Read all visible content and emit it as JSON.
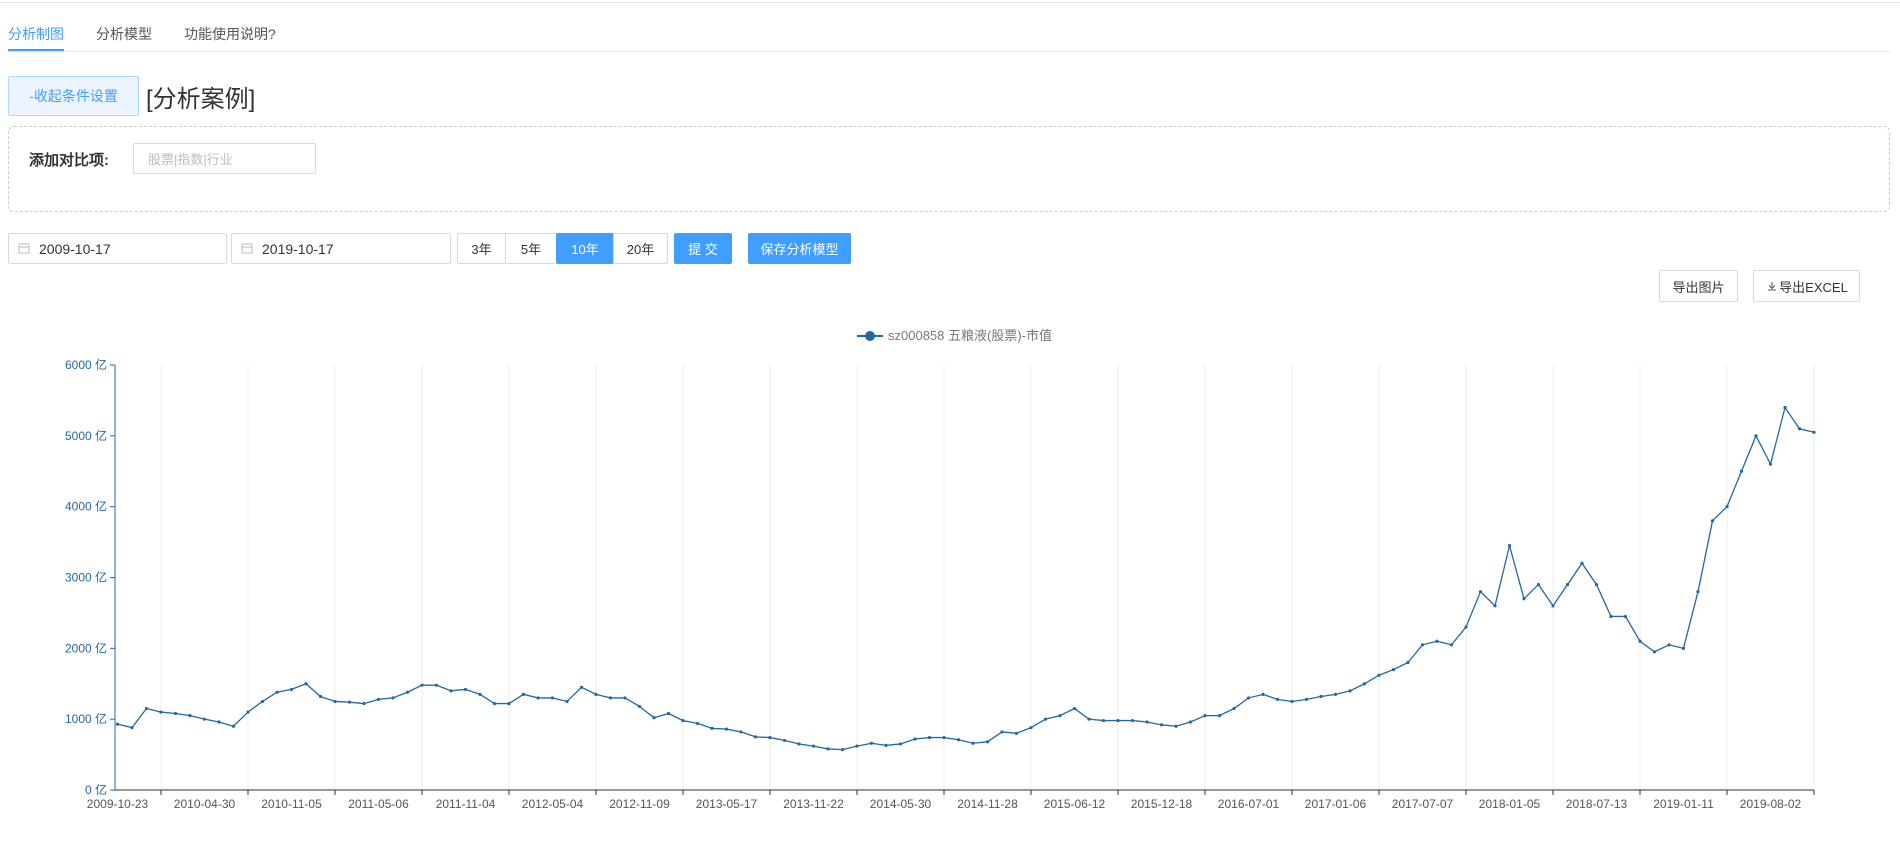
{
  "tabs": [
    "分析制图",
    "分析模型",
    "功能使用说明?"
  ],
  "toggle_button": "-收起条件设置",
  "case_title": "[分析案例]",
  "compare": {
    "label": "添加对比项:",
    "placeholder": "股票|指数|行业"
  },
  "date_range": {
    "start": "2009-10-17",
    "end": "2019-10-17"
  },
  "period_buttons": [
    "3年",
    "5年",
    "10年",
    "20年"
  ],
  "submit_button": "提 交",
  "save_button": "保存分析模型",
  "export_buttons": [
    "导出图片",
    "导出EXCEL"
  ],
  "chart_data": {
    "type": "line",
    "categories": [
      "2009-10-23",
      null,
      null,
      null,
      null,
      null,
      "2010-04-30",
      null,
      null,
      null,
      null,
      null,
      "2010-11-05",
      null,
      null,
      null,
      null,
      null,
      "2011-05-06",
      null,
      null,
      null,
      null,
      null,
      "2011-11-04",
      null,
      null,
      null,
      null,
      null,
      "2012-05-04",
      null,
      null,
      null,
      null,
      null,
      "2012-11-09",
      null,
      null,
      null,
      null,
      null,
      "2013-05-17",
      null,
      null,
      null,
      null,
      null,
      "2013-11-22",
      null,
      null,
      null,
      null,
      null,
      "2014-05-30",
      null,
      null,
      null,
      null,
      null,
      "2014-11-28",
      null,
      null,
      null,
      null,
      null,
      "2015-06-12",
      null,
      null,
      null,
      null,
      null,
      "2015-12-18",
      null,
      null,
      null,
      null,
      null,
      "2016-07-01",
      null,
      null,
      null,
      null,
      null,
      "2017-01-06",
      null,
      null,
      null,
      null,
      null,
      "2017-07-07",
      null,
      null,
      null,
      null,
      null,
      "2018-01-05",
      null,
      null,
      null,
      null,
      null,
      "2018-07-13",
      null,
      null,
      null,
      null,
      null,
      "2019-01-11",
      null,
      null,
      null,
      null,
      null,
      "2019-08-02",
      null,
      null,
      null
    ],
    "series": [
      {
        "name": "sz000858 五粮液(股票)-市值",
        "color": "#2467a3",
        "values": [
          930,
          880,
          1150,
          1100,
          1080,
          1050,
          1000,
          960,
          900,
          1100,
          1250,
          1380,
          1420,
          1500,
          1320,
          1250,
          1240,
          1220,
          1280,
          1300,
          1380,
          1480,
          1480,
          1400,
          1420,
          1350,
          1220,
          1220,
          1350,
          1300,
          1300,
          1250,
          1450,
          1350,
          1300,
          1300,
          1180,
          1020,
          1080,
          980,
          940,
          870,
          860,
          820,
          750,
          740,
          700,
          650,
          620,
          580,
          570,
          620,
          660,
          630,
          650,
          720,
          740,
          740,
          710,
          660,
          680,
          820,
          800,
          880,
          1000,
          1050,
          1150,
          1000,
          980,
          980,
          980,
          960,
          920,
          900,
          960,
          1050,
          1050,
          1150,
          1300,
          1350,
          1280,
          1250,
          1280,
          1320,
          1350,
          1400,
          1500,
          1620,
          1700,
          1800,
          2050,
          2100,
          2050,
          2300,
          2800,
          2600,
          3450,
          2700,
          2900,
          2600,
          2900,
          3200,
          2900,
          2450,
          2450,
          2100,
          1950,
          2050,
          2000,
          2800,
          3800,
          4000,
          4500,
          5000,
          4600,
          5400,
          5100,
          5050
        ]
      }
    ],
    "ylim": [
      0,
      6000
    ],
    "yticks": [
      {
        "value": 0,
        "label": "0 亿"
      },
      {
        "value": 1000,
        "label": "1000 亿"
      },
      {
        "value": 2000,
        "label": "2000 亿"
      },
      {
        "value": 3000,
        "label": "3000 亿"
      },
      {
        "value": 4000,
        "label": "4000 亿"
      },
      {
        "value": 5000,
        "label": "5000 亿"
      },
      {
        "value": 6000,
        "label": "6000 亿"
      }
    ],
    "grid": true
  }
}
